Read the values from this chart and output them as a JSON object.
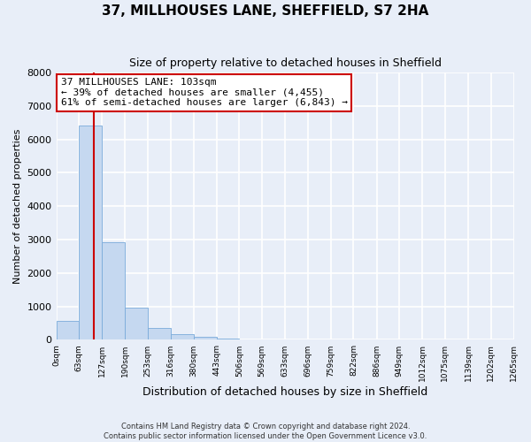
{
  "title": "37, MILLHOUSES LANE, SHEFFIELD, S7 2HA",
  "subtitle": "Size of property relative to detached houses in Sheffield",
  "xlabel": "Distribution of detached houses by size in Sheffield",
  "ylabel": "Number of detached properties",
  "bar_color": "#c5d8f0",
  "bar_edge_color": "#7aabdb",
  "background_color": "#e8eef8",
  "grid_color": "#ffffff",
  "vline_x": 103,
  "vline_color": "#cc0000",
  "annotation_text": "37 MILLHOUSES LANE: 103sqm\n← 39% of detached houses are smaller (4,455)\n61% of semi-detached houses are larger (6,843) →",
  "annotation_box_color": "white",
  "annotation_box_edge": "#cc0000",
  "bin_edges": [
    0,
    63,
    127,
    190,
    253,
    316,
    380,
    443,
    506,
    569,
    633,
    696,
    759,
    822,
    886,
    949,
    1012,
    1075,
    1139,
    1202,
    1265
  ],
  "bin_labels": [
    "0sqm",
    "63sqm",
    "127sqm",
    "190sqm",
    "253sqm",
    "316sqm",
    "380sqm",
    "443sqm",
    "506sqm",
    "569sqm",
    "633sqm",
    "696sqm",
    "759sqm",
    "822sqm",
    "886sqm",
    "949sqm",
    "1012sqm",
    "1075sqm",
    "1139sqm",
    "1202sqm",
    "1265sqm"
  ],
  "bar_heights": [
    560,
    6400,
    2920,
    970,
    360,
    175,
    85,
    45,
    0,
    0,
    0,
    0,
    0,
    0,
    0,
    0,
    0,
    0,
    0,
    0
  ],
  "ylim": [
    0,
    8000
  ],
  "yticks": [
    0,
    1000,
    2000,
    3000,
    4000,
    5000,
    6000,
    7000,
    8000
  ],
  "footer_line1": "Contains HM Land Registry data © Crown copyright and database right 2024.",
  "footer_line2": "Contains public sector information licensed under the Open Government Licence v3.0."
}
